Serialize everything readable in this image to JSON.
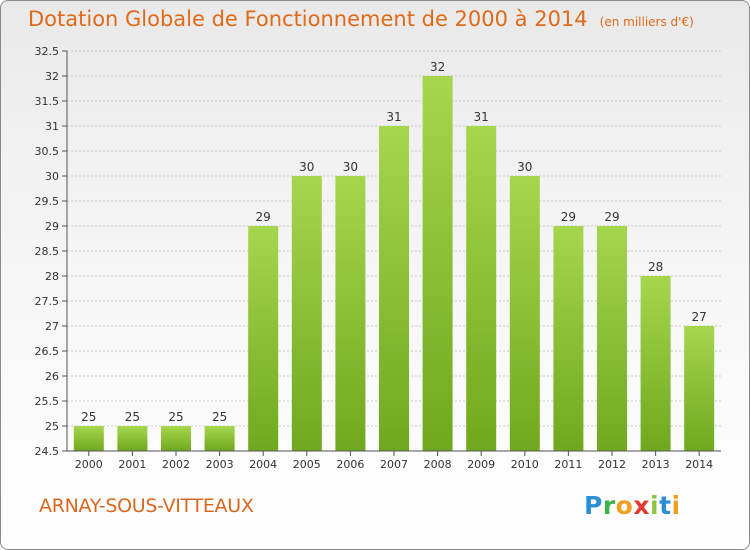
{
  "title": "Dotation Globale de Fonctionnement de 2000 à 2014",
  "subtitle": "(en milliers d'€)",
  "commune": "ARNAY-SOUS-VITTEAUX",
  "logo_text": "Proxiti",
  "colors": {
    "title": "#e06a18",
    "bar_top": "#a6d64e",
    "bar_bottom": "#6fa81e",
    "grid": "#c9c9c9",
    "axis": "#555555"
  },
  "chart_data": {
    "type": "bar",
    "title": "Dotation Globale de Fonctionnement de 2000 à 2014",
    "subtitle": "(en milliers d'€)",
    "xlabel": "",
    "ylabel": "",
    "categories": [
      "2000",
      "2001",
      "2002",
      "2003",
      "2004",
      "2005",
      "2006",
      "2007",
      "2008",
      "2009",
      "2010",
      "2011",
      "2012",
      "2013",
      "2014"
    ],
    "values": [
      25,
      25,
      25,
      25,
      29,
      30,
      30,
      31,
      32,
      31,
      30,
      29,
      29,
      28,
      27
    ],
    "data_labels": [
      "25",
      "25",
      "25",
      "25",
      "29",
      "30",
      "30",
      "31",
      "32",
      "31",
      "30",
      "29",
      "29",
      "28",
      "27"
    ],
    "ylim": [
      24.5,
      32.5
    ],
    "yticks": [
      24.5,
      25,
      25.5,
      26,
      26.5,
      27,
      27.5,
      28,
      28.5,
      29,
      29.5,
      30,
      30.5,
      31,
      31.5,
      32,
      32.5
    ],
    "ytick_labels": [
      "24.5",
      "25",
      "25.5",
      "26",
      "26.5",
      "27",
      "27.5",
      "28",
      "28.5",
      "29",
      "29.5",
      "30",
      "30.5",
      "31",
      "31.5",
      "32",
      "32.5"
    ],
    "grid": true,
    "legend": "none"
  }
}
